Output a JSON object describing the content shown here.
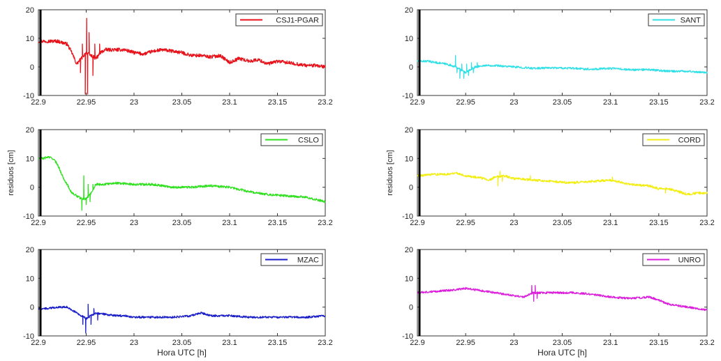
{
  "chart_data": [
    {
      "type": "line",
      "x_range": [
        22.9,
        23.2
      ],
      "ylim": [
        -10,
        20
      ],
      "xticks": [
        "22.9",
        "22.95",
        "23",
        "23.05",
        "23.1",
        "23.15",
        "23.2"
      ],
      "yticks": [
        "-10",
        "0",
        "10",
        "20"
      ],
      "xlabel": "",
      "ylabel": "",
      "legend_position": "top-right",
      "series": [
        {
          "name": "CSJ1-PGAR",
          "color": "#e8121a",
          "noise": 0.6,
          "x": [
            22.9,
            22.91,
            22.92,
            22.93,
            22.935,
            22.94,
            22.945,
            22.95,
            22.955,
            22.96,
            22.965,
            22.97,
            22.98,
            22.99,
            23.0,
            23.01,
            23.02,
            23.03,
            23.04,
            23.05,
            23.06,
            23.07,
            23.08,
            23.09,
            23.1,
            23.11,
            23.12,
            23.13,
            23.14,
            23.15,
            23.16,
            23.17,
            23.18,
            23.19,
            23.2
          ],
          "y": [
            9,
            9,
            9,
            8,
            5,
            1,
            3,
            5,
            4,
            3,
            5,
            6,
            6,
            6,
            5,
            4.5,
            5.5,
            6,
            5.5,
            5,
            4,
            4,
            3.5,
            4,
            1.5,
            3,
            2,
            2.5,
            1,
            2,
            1.5,
            1,
            0.5,
            0.5,
            0
          ]
        }
      ],
      "spikes": [
        {
          "x": 22.9505,
          "y": 17
        },
        {
          "x": 22.9515,
          "y": -9.5
        },
        {
          "x": 22.949,
          "y": -9.5
        },
        {
          "x": 22.953,
          "y": 12
        },
        {
          "x": 22.946,
          "y": 8
        },
        {
          "x": 22.944,
          "y": -2
        },
        {
          "x": 22.957,
          "y": -3
        },
        {
          "x": 22.959,
          "y": 8
        },
        {
          "x": 22.962,
          "y": 3
        },
        {
          "x": 22.964,
          "y": 8
        }
      ]
    },
    {
      "type": "line",
      "x_range": [
        22.9,
        23.2
      ],
      "ylim": [
        -10,
        20
      ],
      "xticks": [
        "22.9",
        "22.95",
        "23",
        "23.05",
        "23.1",
        "23.15",
        "23.2"
      ],
      "yticks": [
        "-10",
        "0",
        "10",
        "20"
      ],
      "xlabel": "",
      "ylabel": "",
      "legend_position": "top-right",
      "series": [
        {
          "name": "SANT",
          "color": "#2fe0e6",
          "noise": 0.35,
          "x": [
            22.9,
            22.91,
            22.92,
            22.93,
            22.935,
            22.94,
            22.945,
            22.95,
            22.955,
            22.96,
            22.97,
            22.98,
            23.0,
            23.02,
            23.04,
            23.06,
            23.08,
            23.1,
            23.12,
            23.14,
            23.16,
            23.18,
            23.2
          ],
          "y": [
            2,
            2,
            1.5,
            1,
            0.5,
            0,
            -1,
            -2,
            -1,
            0,
            0.5,
            0.5,
            0,
            -0.5,
            -0.3,
            -0.5,
            -0.8,
            -0.5,
            -1,
            -1,
            -1.5,
            -1.5,
            -2
          ]
        }
      ],
      "spikes": [
        {
          "x": 22.9395,
          "y": 4
        },
        {
          "x": 22.941,
          "y": -2
        },
        {
          "x": 22.944,
          "y": -4
        },
        {
          "x": 22.946,
          "y": 1
        },
        {
          "x": 22.948,
          "y": -4
        },
        {
          "x": 22.951,
          "y": 1
        },
        {
          "x": 22.953,
          "y": -3
        },
        {
          "x": 22.956,
          "y": 1.5
        },
        {
          "x": 22.958,
          "y": -2
        },
        {
          "x": 22.962,
          "y": 1.5
        }
      ]
    },
    {
      "type": "line",
      "x_range": [
        22.9,
        23.2
      ],
      "ylim": [
        -10,
        20
      ],
      "xticks": [
        "22.9",
        "22.95",
        "23",
        "23.05",
        "23.1",
        "23.15",
        "23.2"
      ],
      "yticks": [
        "-10",
        "0",
        "10",
        "20"
      ],
      "xlabel": "",
      "ylabel": "residuos [cm]",
      "legend_position": "top-right",
      "series": [
        {
          "name": "CSLO",
          "color": "#2ee01e",
          "noise": 0.4,
          "x": [
            22.9,
            22.905,
            22.91,
            22.915,
            22.92,
            22.925,
            22.93,
            22.935,
            22.94,
            22.945,
            22.95,
            22.955,
            22.96,
            22.97,
            22.98,
            23.0,
            23.02,
            23.04,
            23.06,
            23.08,
            23.1,
            23.12,
            23.14,
            23.16,
            23.18,
            23.2
          ],
          "y": [
            10,
            10,
            10.5,
            10,
            8,
            4,
            1,
            -2,
            -3,
            -4,
            -4,
            -2,
            1,
            1,
            1.5,
            1,
            1,
            0,
            0,
            0.5,
            0,
            -1.5,
            -2.5,
            -3,
            -3.5,
            -5
          ]
        }
      ],
      "spikes": [
        {
          "x": 22.9475,
          "y": 4
        },
        {
          "x": 22.9455,
          "y": -8
        },
        {
          "x": 22.95,
          "y": -6
        },
        {
          "x": 22.952,
          "y": 1
        },
        {
          "x": 22.954,
          "y": -5
        },
        {
          "x": 22.957,
          "y": 1
        }
      ]
    },
    {
      "type": "line",
      "x_range": [
        22.9,
        23.2
      ],
      "ylim": [
        -10,
        20
      ],
      "xticks": [
        "22.9",
        "22.95",
        "23",
        "23.05",
        "23.1",
        "23.15",
        "23.2"
      ],
      "yticks": [
        "-10",
        "0",
        "10",
        "20"
      ],
      "xlabel": "",
      "ylabel": "residuos [cm]",
      "legend_position": "top-right",
      "series": [
        {
          "name": "CORD",
          "color": "#f2ee12",
          "noise": 0.4,
          "x": [
            22.9,
            22.92,
            22.93,
            22.94,
            22.95,
            22.96,
            22.97,
            22.975,
            22.98,
            22.99,
            23.0,
            23.02,
            23.04,
            23.06,
            23.08,
            23.1,
            23.12,
            23.14,
            23.15,
            23.16,
            23.17,
            23.18,
            23.19,
            23.2
          ],
          "y": [
            4,
            4.5,
            4.5,
            5,
            4,
            3.5,
            3,
            2.5,
            3.5,
            4,
            3,
            2.5,
            2,
            1.5,
            2,
            2.5,
            1,
            0.5,
            -0.5,
            -0.5,
            -1.5,
            -2.5,
            -2,
            -2
          ]
        }
      ],
      "spikes": [
        {
          "x": 22.9835,
          "y": 0.5
        },
        {
          "x": 22.9855,
          "y": 5.5
        },
        {
          "x": 22.988,
          "y": 2
        },
        {
          "x": 23.017,
          "y": 4
        },
        {
          "x": 23.102,
          "y": 3.5
        },
        {
          "x": 23.157,
          "y": -2
        }
      ]
    },
    {
      "type": "line",
      "x_range": [
        22.9,
        23.2
      ],
      "ylim": [
        -10,
        20
      ],
      "xticks": [
        "22.9",
        "22.95",
        "23",
        "23.05",
        "23.1",
        "23.15",
        "23.2"
      ],
      "yticks": [
        "-10",
        "0",
        "10",
        "20"
      ],
      "xlabel": "Hora UTC [h]",
      "ylabel": "",
      "legend_position": "top-right",
      "series": [
        {
          "name": "MZAC",
          "color": "#1a1ec8",
          "noise": 0.35,
          "x": [
            22.9,
            22.91,
            22.92,
            22.93,
            22.935,
            22.94,
            22.945,
            22.95,
            22.955,
            22.96,
            22.97,
            22.98,
            22.99,
            23.0,
            23.02,
            23.04,
            23.06,
            23.07,
            23.08,
            23.1,
            23.12,
            23.14,
            23.16,
            23.18,
            23.2
          ],
          "y": [
            -0.5,
            -0.5,
            0,
            0,
            -1,
            -2,
            -3,
            -4,
            -3,
            -2,
            -2.5,
            -3,
            -3,
            -3.5,
            -3.5,
            -3.5,
            -3,
            -2,
            -3,
            -3,
            -3.5,
            -3.5,
            -3.5,
            -3.5,
            -3
          ]
        }
      ],
      "spikes": [
        {
          "x": 22.9495,
          "y": -9
        },
        {
          "x": 22.952,
          "y": 1
        },
        {
          "x": 22.955,
          "y": -6
        },
        {
          "x": 22.958,
          "y": -0.5
        },
        {
          "x": 22.962,
          "y": -4.5
        },
        {
          "x": 22.9465,
          "y": -6
        }
      ]
    },
    {
      "type": "line",
      "x_range": [
        22.9,
        23.2
      ],
      "ylim": [
        -10,
        20
      ],
      "xticks": [
        "22.9",
        "22.95",
        "23",
        "23.05",
        "23.1",
        "23.15",
        "23.2"
      ],
      "yticks": [
        "-10",
        "0",
        "10",
        "20"
      ],
      "xlabel": "Hora UTC [h]",
      "ylabel": "",
      "legend_position": "top-right",
      "series": [
        {
          "name": "UNRO",
          "color": "#dc1edc",
          "noise": 0.35,
          "x": [
            22.9,
            22.92,
            22.94,
            22.95,
            22.96,
            22.98,
            23.0,
            23.01,
            23.02,
            23.03,
            23.04,
            23.06,
            23.08,
            23.1,
            23.12,
            23.14,
            23.15,
            23.16,
            23.18,
            23.2
          ],
          "y": [
            5,
            5.5,
            6,
            6.5,
            6,
            5,
            4,
            3.5,
            5,
            5,
            5,
            5,
            4.5,
            3.5,
            3,
            3.5,
            2.5,
            1,
            0,
            -1
          ]
        }
      ],
      "spikes": [
        {
          "x": 23.0185,
          "y": 7.5
        },
        {
          "x": 23.0205,
          "y": 2
        },
        {
          "x": 23.022,
          "y": 7.5
        },
        {
          "x": 23.024,
          "y": 3
        }
      ]
    }
  ]
}
